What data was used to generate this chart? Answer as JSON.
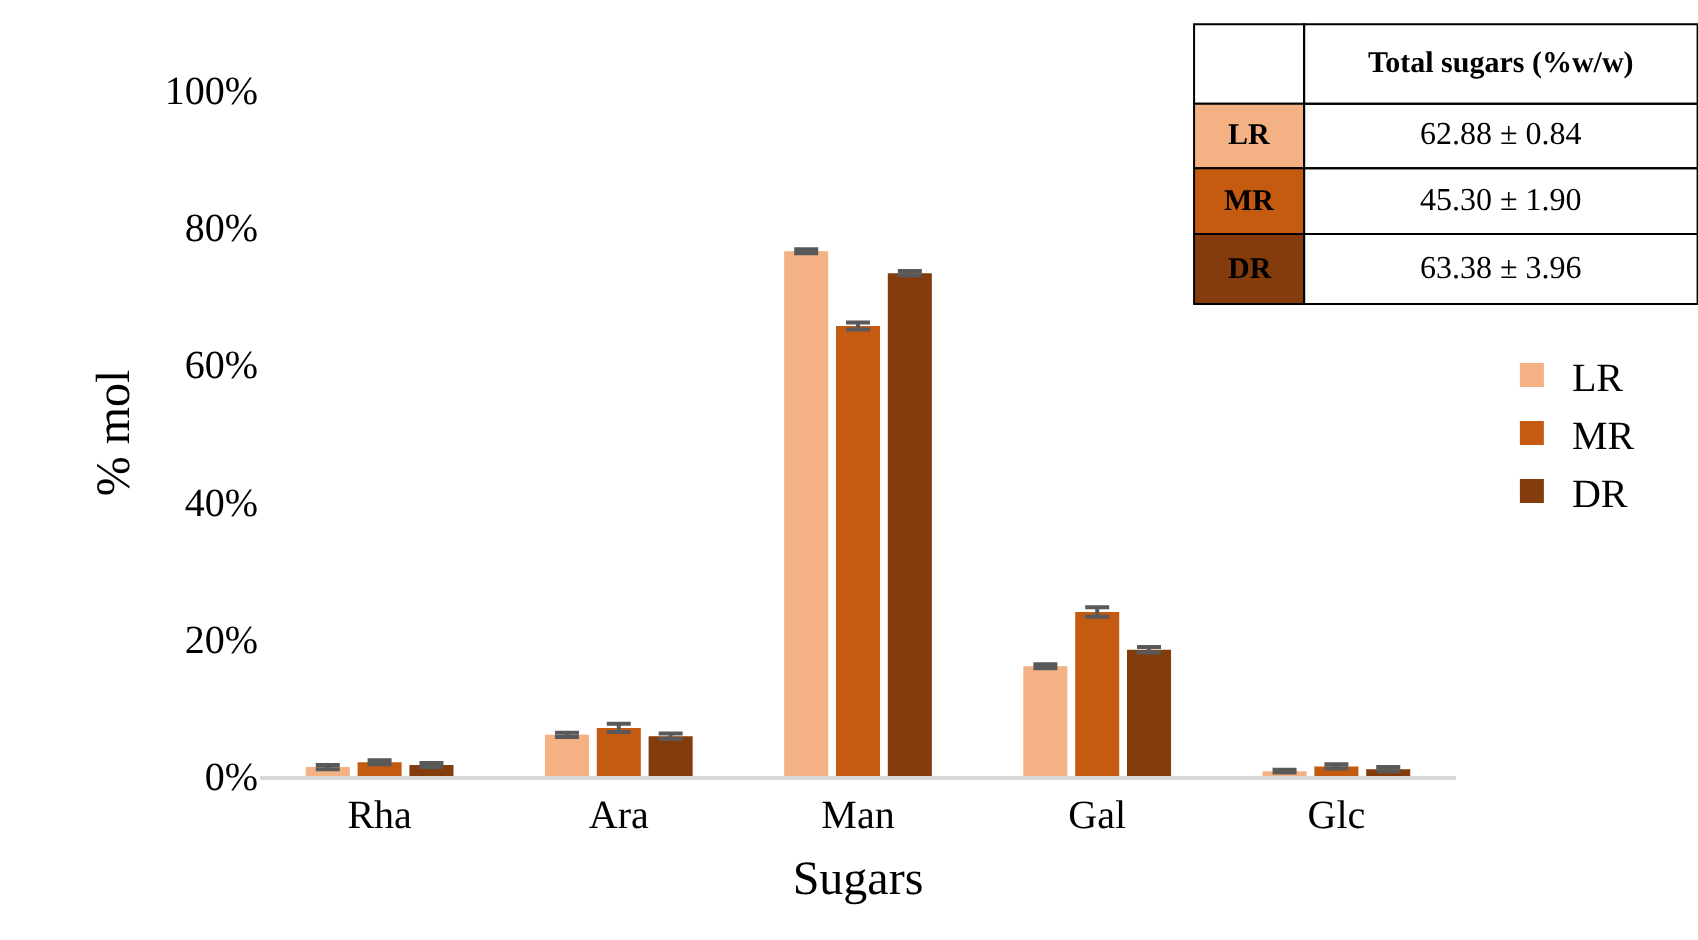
{
  "chart_data": {
    "type": "bar",
    "xlabel": "Sugars",
    "ylabel": "% mol",
    "categories": [
      "Rha",
      "Ara",
      "Man",
      "Gal",
      "Glc"
    ],
    "series": [
      {
        "name": "LR",
        "color": "#f4b183",
        "values": [
          1.3,
          6.0,
          76.5,
          16.0,
          0.7
        ],
        "errors": [
          0.3,
          0.3,
          0.3,
          0.3,
          0.2
        ]
      },
      {
        "name": "MR",
        "color": "#c55a11",
        "values": [
          2.0,
          7.0,
          65.6,
          23.9,
          1.4
        ],
        "errors": [
          0.3,
          0.6,
          0.5,
          0.7,
          0.3
        ]
      },
      {
        "name": "DR",
        "color": "#843c0c",
        "values": [
          1.6,
          5.8,
          73.3,
          18.4,
          1.0
        ],
        "errors": [
          0.3,
          0.4,
          0.3,
          0.4,
          0.3
        ]
      }
    ],
    "ylim": [
      0,
      100
    ],
    "yticks": [
      {
        "value": 0,
        "label": "0%"
      },
      {
        "value": 20,
        "label": "20%"
      },
      {
        "value": 40,
        "label": "40%"
      },
      {
        "value": 60,
        "label": "60%"
      },
      {
        "value": 80,
        "label": "80%"
      },
      {
        "value": 100,
        "label": "100%"
      }
    ],
    "legend": "right",
    "annotations": [
      "Total sugars (%w/w)",
      "62.88 ± 0.84",
      "45.30 ± 1.90",
      "63.38 ± 3.96"
    ]
  }
}
